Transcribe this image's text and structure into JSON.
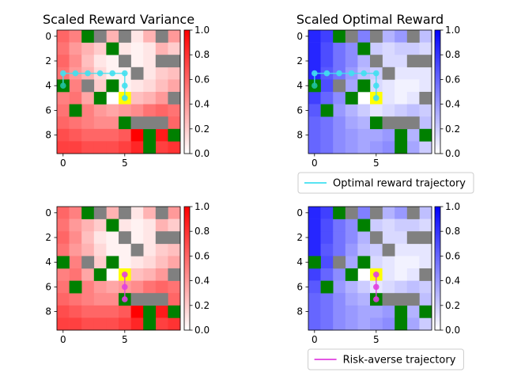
{
  "chart_data": [
    {
      "type": "heatmap",
      "title": "Scaled Reward Variance",
      "colormap": "white-to-red",
      "cmap_max_color": "#ff0000",
      "clim": [
        0,
        1
      ],
      "colorbar_ticks": [
        "0.0",
        "0.2",
        "0.4",
        "0.6",
        "0.8",
        "1.0"
      ],
      "xticks": [
        "0",
        "5"
      ],
      "yticks": [
        "0",
        "2",
        "4",
        "6",
        "8"
      ],
      "values": [
        [
          0.6,
          0.5,
          null,
          null,
          0.3,
          null,
          0.1,
          0.3,
          null,
          0.4
        ],
        [
          0.55,
          0.4,
          0.3,
          0.2,
          null,
          0.1,
          0.05,
          0.1,
          0.3,
          0.2
        ],
        [
          0.6,
          0.45,
          0.25,
          0.1,
          0.05,
          null,
          0.05,
          0.1,
          null,
          null
        ],
        [
          0.55,
          0.4,
          0.3,
          0.15,
          0.05,
          0.05,
          null,
          0.1,
          0.2,
          0.25
        ],
        [
          null,
          0.5,
          null,
          0.2,
          null,
          0.05,
          0.1,
          0.15,
          0.25,
          0.35
        ],
        [
          0.5,
          0.55,
          0.35,
          0.3,
          null,
          0.3,
          0.25,
          0.3,
          0.4,
          null
        ],
        [
          0.55,
          null,
          0.5,
          0.4,
          0.35,
          0.4,
          0.45,
          0.55,
          0.6,
          0.55
        ],
        [
          0.6,
          0.55,
          0.5,
          0.45,
          0.45,
          null,
          null,
          null,
          null,
          0.6
        ],
        [
          0.7,
          0.65,
          0.6,
          0.6,
          0.6,
          0.65,
          1.0,
          null,
          0.9,
          null
        ],
        [
          0.75,
          0.75,
          0.7,
          0.7,
          0.7,
          0.75,
          0.85,
          null,
          0.75,
          0.8
        ]
      ],
      "obstacles_green": [
        [
          0,
          2
        ],
        [
          1,
          4
        ],
        [
          4,
          0
        ],
        [
          4,
          4
        ],
        [
          5,
          3
        ],
        [
          6,
          1
        ],
        [
          7,
          5
        ],
        [
          8,
          7
        ],
        [
          8,
          9
        ],
        [
          9,
          7
        ]
      ],
      "obstacles_gray": [
        [
          0,
          3
        ],
        [
          0,
          5
        ],
        [
          0,
          8
        ],
        [
          2,
          5
        ],
        [
          2,
          8
        ],
        [
          2,
          9
        ],
        [
          3,
          6
        ],
        [
          4,
          2
        ],
        [
          5,
          9
        ],
        [
          7,
          6
        ],
        [
          7,
          7
        ],
        [
          7,
          8
        ]
      ],
      "highlight": [
        5,
        5
      ],
      "trajectory": {
        "color": "#40e0f0",
        "points": [
          [
            4,
            0
          ],
          [
            3,
            0
          ],
          [
            3,
            1
          ],
          [
            3,
            2
          ],
          [
            3,
            3
          ],
          [
            3,
            4
          ],
          [
            3,
            5
          ],
          [
            4,
            5
          ],
          [
            5,
            5
          ]
        ]
      }
    },
    {
      "type": "heatmap",
      "title": "Scaled Optimal Reward",
      "colormap": "white-to-blue",
      "cmap_max_color": "#0000ff",
      "clim": [
        0,
        1
      ],
      "colorbar_ticks": [
        "0.0",
        "0.2",
        "0.4",
        "0.6",
        "0.8",
        "1.0"
      ],
      "xticks": [
        "0",
        "5"
      ],
      "yticks": [
        "0",
        "2",
        "4",
        "6",
        "8"
      ],
      "values": [
        [
          0.85,
          0.75,
          null,
          null,
          0.5,
          null,
          0.3,
          0.4,
          null,
          0.25
        ],
        [
          0.85,
          0.7,
          0.55,
          0.45,
          null,
          0.2,
          0.15,
          0.2,
          0.2,
          0.15
        ],
        [
          0.85,
          0.7,
          0.55,
          0.45,
          0.3,
          null,
          0.15,
          0.15,
          null,
          null
        ],
        [
          0.85,
          0.65,
          0.55,
          0.4,
          0.25,
          0.2,
          null,
          0.1,
          0.1,
          0.1
        ],
        [
          null,
          0.7,
          null,
          0.35,
          null,
          0.15,
          0.1,
          0.05,
          0.05,
          0.1
        ],
        [
          0.75,
          0.6,
          0.45,
          0.3,
          null,
          0.2,
          0.1,
          0.05,
          0.1,
          null
        ],
        [
          0.65,
          null,
          0.4,
          0.3,
          0.2,
          0.1,
          0.15,
          0.2,
          0.25,
          0.2
        ],
        [
          0.6,
          0.55,
          0.45,
          0.35,
          0.3,
          null,
          null,
          null,
          null,
          0.25
        ],
        [
          0.6,
          0.55,
          0.45,
          0.4,
          0.35,
          0.35,
          0.4,
          null,
          0.3,
          null
        ],
        [
          0.6,
          0.55,
          0.45,
          0.4,
          0.35,
          0.4,
          0.45,
          null,
          0.35,
          0.2
        ]
      ],
      "obstacles_green": [
        [
          0,
          2
        ],
        [
          1,
          4
        ],
        [
          4,
          0
        ],
        [
          4,
          4
        ],
        [
          5,
          3
        ],
        [
          6,
          1
        ],
        [
          7,
          5
        ],
        [
          8,
          7
        ],
        [
          8,
          9
        ],
        [
          9,
          7
        ]
      ],
      "obstacles_gray": [
        [
          0,
          3
        ],
        [
          0,
          5
        ],
        [
          0,
          8
        ],
        [
          2,
          5
        ],
        [
          2,
          8
        ],
        [
          2,
          9
        ],
        [
          3,
          6
        ],
        [
          4,
          2
        ],
        [
          5,
          9
        ],
        [
          7,
          6
        ],
        [
          7,
          7
        ],
        [
          7,
          8
        ]
      ],
      "highlight": [
        5,
        5
      ],
      "trajectory": {
        "color": "#40e0f0",
        "points": [
          [
            4,
            0
          ],
          [
            3,
            0
          ],
          [
            3,
            1
          ],
          [
            3,
            2
          ],
          [
            3,
            3
          ],
          [
            3,
            4
          ],
          [
            3,
            5
          ],
          [
            4,
            5
          ],
          [
            5,
            5
          ]
        ]
      },
      "legend": {
        "label": "Optimal reward trajectory",
        "color": "#40e0f0",
        "placement": "below"
      }
    },
    {
      "type": "heatmap",
      "title": "",
      "colormap": "white-to-red",
      "cmap_max_color": "#ff0000",
      "clim": [
        0,
        1
      ],
      "colorbar_ticks": [
        "0.0",
        "0.2",
        "0.4",
        "0.6",
        "0.8",
        "1.0"
      ],
      "xticks": [
        "0",
        "5"
      ],
      "yticks": [
        "0",
        "2",
        "4",
        "6",
        "8"
      ],
      "values": [
        [
          0.6,
          0.5,
          null,
          null,
          0.3,
          null,
          0.1,
          0.3,
          null,
          0.4
        ],
        [
          0.55,
          0.4,
          0.3,
          0.2,
          null,
          0.1,
          0.05,
          0.1,
          0.3,
          0.2
        ],
        [
          0.6,
          0.45,
          0.25,
          0.1,
          0.05,
          null,
          0.05,
          0.1,
          null,
          null
        ],
        [
          0.55,
          0.4,
          0.3,
          0.15,
          0.05,
          0.05,
          null,
          0.1,
          0.2,
          0.25
        ],
        [
          null,
          0.5,
          null,
          0.2,
          null,
          0.05,
          0.1,
          0.15,
          0.25,
          0.35
        ],
        [
          0.5,
          0.55,
          0.35,
          0.3,
          null,
          0.3,
          0.25,
          0.3,
          0.4,
          null
        ],
        [
          0.55,
          null,
          0.5,
          0.4,
          0.35,
          0.4,
          0.45,
          0.55,
          0.6,
          0.55
        ],
        [
          0.6,
          0.55,
          0.5,
          0.45,
          0.45,
          null,
          null,
          null,
          null,
          0.6
        ],
        [
          0.7,
          0.65,
          0.6,
          0.6,
          0.6,
          0.65,
          1.0,
          null,
          0.9,
          null
        ],
        [
          0.75,
          0.75,
          0.7,
          0.7,
          0.7,
          0.75,
          0.85,
          null,
          0.75,
          0.8
        ]
      ],
      "obstacles_green": [
        [
          0,
          2
        ],
        [
          1,
          4
        ],
        [
          4,
          0
        ],
        [
          4,
          4
        ],
        [
          5,
          3
        ],
        [
          6,
          1
        ],
        [
          7,
          5
        ],
        [
          8,
          7
        ],
        [
          8,
          9
        ],
        [
          9,
          7
        ]
      ],
      "obstacles_gray": [
        [
          0,
          3
        ],
        [
          0,
          5
        ],
        [
          0,
          8
        ],
        [
          2,
          5
        ],
        [
          2,
          8
        ],
        [
          2,
          9
        ],
        [
          3,
          6
        ],
        [
          4,
          2
        ],
        [
          5,
          9
        ],
        [
          7,
          6
        ],
        [
          7,
          7
        ],
        [
          7,
          8
        ]
      ],
      "highlight": [
        5,
        5
      ],
      "trajectory": {
        "color": "#e040e0",
        "points": [
          [
            5,
            5
          ],
          [
            6,
            5
          ],
          [
            7,
            5
          ]
        ]
      }
    },
    {
      "type": "heatmap",
      "title": "",
      "colormap": "white-to-blue",
      "cmap_max_color": "#0000ff",
      "clim": [
        0,
        1
      ],
      "colorbar_ticks": [
        "0.0",
        "0.2",
        "0.4",
        "0.6",
        "0.8",
        "1.0"
      ],
      "xticks": [
        "0",
        "5"
      ],
      "yticks": [
        "0",
        "2",
        "4",
        "6",
        "8"
      ],
      "values": [
        [
          0.85,
          0.75,
          null,
          null,
          0.5,
          null,
          0.3,
          0.4,
          null,
          0.25
        ],
        [
          0.85,
          0.7,
          0.55,
          0.45,
          null,
          0.2,
          0.15,
          0.2,
          0.2,
          0.15
        ],
        [
          0.85,
          0.7,
          0.55,
          0.45,
          0.3,
          null,
          0.15,
          0.15,
          null,
          null
        ],
        [
          0.85,
          0.65,
          0.55,
          0.4,
          0.25,
          0.2,
          null,
          0.1,
          0.1,
          0.1
        ],
        [
          null,
          0.7,
          null,
          0.35,
          null,
          0.15,
          0.1,
          0.05,
          0.05,
          0.1
        ],
        [
          0.75,
          0.6,
          0.45,
          0.3,
          null,
          0.2,
          0.1,
          0.05,
          0.1,
          null
        ],
        [
          0.65,
          null,
          0.4,
          0.3,
          0.2,
          0.1,
          0.15,
          0.2,
          0.25,
          0.2
        ],
        [
          0.6,
          0.55,
          0.45,
          0.35,
          0.3,
          null,
          null,
          null,
          null,
          0.25
        ],
        [
          0.6,
          0.55,
          0.45,
          0.4,
          0.35,
          0.35,
          0.4,
          null,
          0.3,
          null
        ],
        [
          0.6,
          0.55,
          0.45,
          0.4,
          0.35,
          0.4,
          0.45,
          null,
          0.35,
          0.2
        ]
      ],
      "obstacles_green": [
        [
          0,
          2
        ],
        [
          1,
          4
        ],
        [
          4,
          0
        ],
        [
          4,
          4
        ],
        [
          5,
          3
        ],
        [
          6,
          1
        ],
        [
          7,
          5
        ],
        [
          8,
          7
        ],
        [
          8,
          9
        ],
        [
          9,
          7
        ]
      ],
      "obstacles_gray": [
        [
          0,
          3
        ],
        [
          0,
          5
        ],
        [
          0,
          8
        ],
        [
          2,
          5
        ],
        [
          2,
          8
        ],
        [
          2,
          9
        ],
        [
          3,
          6
        ],
        [
          4,
          2
        ],
        [
          5,
          9
        ],
        [
          7,
          6
        ],
        [
          7,
          7
        ],
        [
          7,
          8
        ]
      ],
      "highlight": [
        5,
        5
      ],
      "trajectory": {
        "color": "#e040e0",
        "points": [
          [
            5,
            5
          ],
          [
            6,
            5
          ],
          [
            7,
            5
          ]
        ]
      },
      "legend": {
        "label": "Risk-averse trajectory",
        "color": "#e040e0",
        "placement": "below"
      }
    }
  ]
}
